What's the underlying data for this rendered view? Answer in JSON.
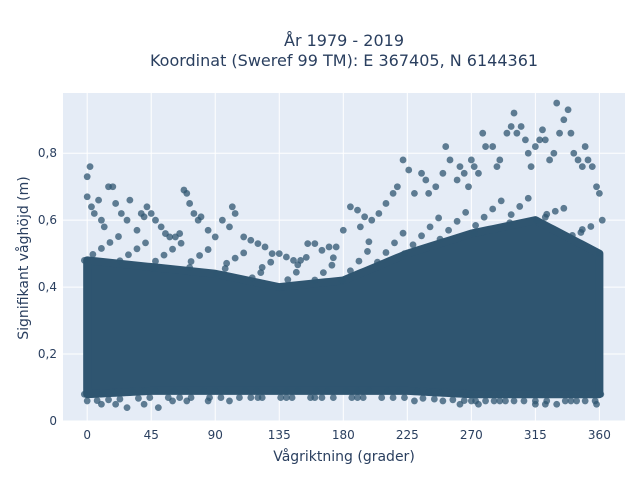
{
  "chart_data": {
    "type": "scatter",
    "title": "År 1979 - 2019",
    "subtitle": "Koordinat (Sweref 99 TM): E 367405, N 6144361",
    "xlabel": "Vågriktning (grader)",
    "ylabel": "Signifikant våghöjd (m)",
    "xlim": [
      -17,
      378
    ],
    "ylim": [
      0,
      0.98
    ],
    "xticks": [
      0,
      45,
      90,
      135,
      180,
      225,
      270,
      315,
      360
    ],
    "xtick_labels": [
      "0",
      "45",
      "90",
      "135",
      "180",
      "225",
      "270",
      "315",
      "360"
    ],
    "yticks": [
      0,
      0.2,
      0.4,
      0.6,
      0.8
    ],
    "ytick_labels": [
      "0",
      "0,2",
      "0,4",
      "0,6",
      "0,8"
    ],
    "grid": true,
    "marker_color": "#2f5570",
    "plot_background": "#e5ecf6",
    "band": [
      [
        0,
        0.08,
        0.48
      ],
      [
        45,
        0.09,
        0.46
      ],
      [
        90,
        0.09,
        0.44
      ],
      [
        135,
        0.09,
        0.4
      ],
      [
        180,
        0.09,
        0.42
      ],
      [
        225,
        0.09,
        0.5
      ],
      [
        270,
        0.08,
        0.56
      ],
      [
        315,
        0.08,
        0.6
      ],
      [
        360,
        0.08,
        0.5
      ]
    ],
    "points": [
      [
        0,
        0.73
      ],
      [
        2,
        0.76
      ],
      [
        0,
        0.67
      ],
      [
        3,
        0.64
      ],
      [
        5,
        0.62
      ],
      [
        8,
        0.66
      ],
      [
        10,
        0.6
      ],
      [
        12,
        0.58
      ],
      [
        15,
        0.7
      ],
      [
        18,
        0.7
      ],
      [
        20,
        0.65
      ],
      [
        24,
        0.62
      ],
      [
        28,
        0.6
      ],
      [
        30,
        0.66
      ],
      [
        35,
        0.57
      ],
      [
        38,
        0.62
      ],
      [
        40,
        0.61
      ],
      [
        42,
        0.64
      ],
      [
        45,
        0.62
      ],
      [
        48,
        0.6
      ],
      [
        52,
        0.58
      ],
      [
        55,
        0.56
      ],
      [
        58,
        0.55
      ],
      [
        62,
        0.55
      ],
      [
        65,
        0.56
      ],
      [
        68,
        0.69
      ],
      [
        70,
        0.68
      ],
      [
        72,
        0.65
      ],
      [
        75,
        0.62
      ],
      [
        78,
        0.6
      ],
      [
        80,
        0.61
      ],
      [
        85,
        0.57
      ],
      [
        90,
        0.55
      ],
      [
        95,
        0.6
      ],
      [
        100,
        0.58
      ],
      [
        102,
        0.64
      ],
      [
        104,
        0.62
      ],
      [
        110,
        0.55
      ],
      [
        115,
        0.54
      ],
      [
        120,
        0.53
      ],
      [
        125,
        0.52
      ],
      [
        130,
        0.5
      ],
      [
        135,
        0.5
      ],
      [
        140,
        0.49
      ],
      [
        145,
        0.48
      ],
      [
        150,
        0.48
      ],
      [
        155,
        0.53
      ],
      [
        160,
        0.53
      ],
      [
        165,
        0.51
      ],
      [
        170,
        0.52
      ],
      [
        175,
        0.52
      ],
      [
        180,
        0.57
      ],
      [
        185,
        0.64
      ],
      [
        190,
        0.63
      ],
      [
        192,
        0.58
      ],
      [
        195,
        0.61
      ],
      [
        200,
        0.6
      ],
      [
        205,
        0.62
      ],
      [
        210,
        0.65
      ],
      [
        215,
        0.68
      ],
      [
        218,
        0.7
      ],
      [
        222,
        0.78
      ],
      [
        226,
        0.75
      ],
      [
        230,
        0.68
      ],
      [
        235,
        0.74
      ],
      [
        238,
        0.72
      ],
      [
        240,
        0.68
      ],
      [
        245,
        0.7
      ],
      [
        250,
        0.74
      ],
      [
        252,
        0.82
      ],
      [
        255,
        0.78
      ],
      [
        260,
        0.72
      ],
      [
        262,
        0.76
      ],
      [
        265,
        0.74
      ],
      [
        268,
        0.7
      ],
      [
        270,
        0.78
      ],
      [
        272,
        0.76
      ],
      [
        275,
        0.74
      ],
      [
        278,
        0.86
      ],
      [
        280,
        0.82
      ],
      [
        285,
        0.82
      ],
      [
        288,
        0.76
      ],
      [
        290,
        0.78
      ],
      [
        295,
        0.86
      ],
      [
        298,
        0.88
      ],
      [
        300,
        0.92
      ],
      [
        302,
        0.86
      ],
      [
        305,
        0.88
      ],
      [
        308,
        0.84
      ],
      [
        310,
        0.8
      ],
      [
        312,
        0.76
      ],
      [
        315,
        0.82
      ],
      [
        318,
        0.84
      ],
      [
        320,
        0.87
      ],
      [
        322,
        0.84
      ],
      [
        325,
        0.78
      ],
      [
        328,
        0.8
      ],
      [
        330,
        0.95
      ],
      [
        332,
        0.86
      ],
      [
        335,
        0.9
      ],
      [
        338,
        0.93
      ],
      [
        340,
        0.86
      ],
      [
        342,
        0.8
      ],
      [
        345,
        0.78
      ],
      [
        348,
        0.76
      ],
      [
        350,
        0.82
      ],
      [
        352,
        0.78
      ],
      [
        355,
        0.76
      ],
      [
        358,
        0.7
      ],
      [
        360,
        0.68
      ],
      [
        362,
        0.6
      ],
      [
        0,
        0.06
      ],
      [
        10,
        0.05
      ],
      [
        20,
        0.05
      ],
      [
        28,
        0.04
      ],
      [
        40,
        0.05
      ],
      [
        50,
        0.04
      ],
      [
        60,
        0.06
      ],
      [
        70,
        0.06
      ],
      [
        85,
        0.06
      ],
      [
        100,
        0.06
      ],
      [
        120,
        0.07
      ],
      [
        140,
        0.07
      ],
      [
        160,
        0.07
      ],
      [
        190,
        0.07
      ],
      [
        230,
        0.06
      ],
      [
        250,
        0.06
      ],
      [
        262,
        0.05
      ],
      [
        270,
        0.06
      ],
      [
        275,
        0.05
      ],
      [
        280,
        0.06
      ],
      [
        290,
        0.06
      ],
      [
        300,
        0.06
      ],
      [
        315,
        0.05
      ],
      [
        322,
        0.05
      ],
      [
        330,
        0.05
      ],
      [
        340,
        0.06
      ],
      [
        350,
        0.06
      ],
      [
        358,
        0.05
      ]
    ]
  }
}
